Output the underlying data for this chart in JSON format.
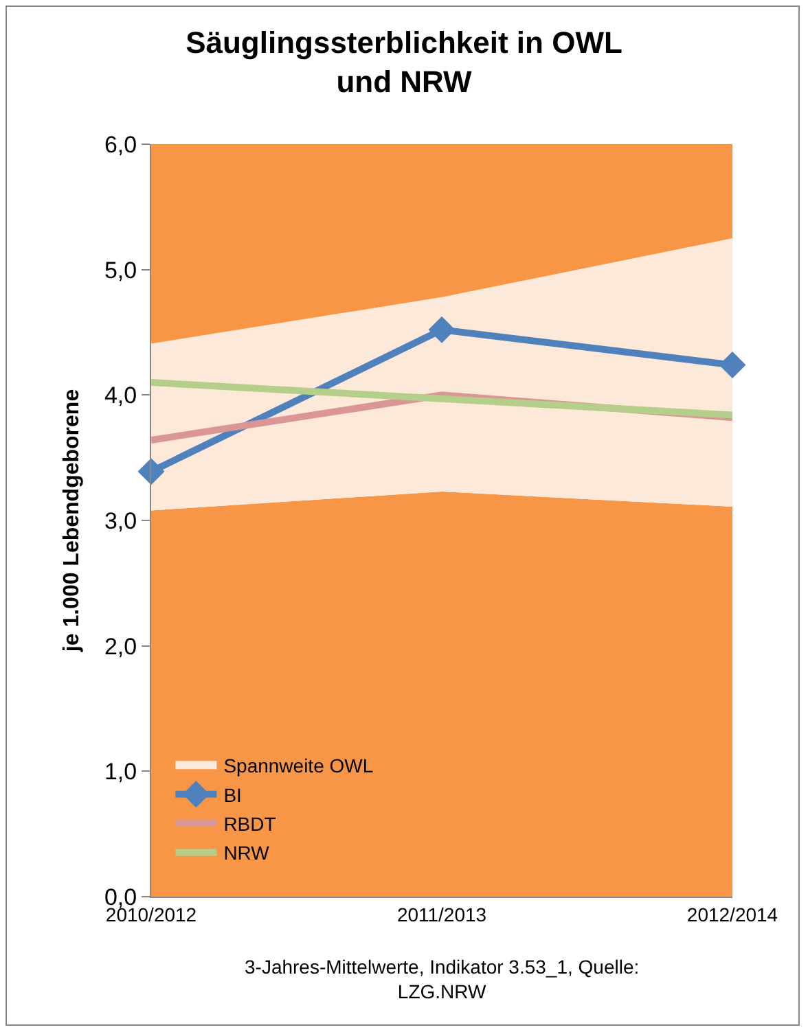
{
  "chart_data": {
    "type": "line",
    "title": "Säuglingssterblichkeit in OWL und NRW",
    "ylabel": "je 1.000 Lebendgeborene",
    "categories": [
      "2010/2012",
      "2011/2013",
      "2012/2014"
    ],
    "stacked": true,
    "series": [
      {
        "type": "area",
        "color": "#f79646",
        "values": [
          3.08,
          3.23,
          3.11
        ]
      },
      {
        "type": "area",
        "name": "Spannweite OWL",
        "color": "#fde9d9",
        "values": [
          1.33,
          1.55,
          2.14
        ]
      },
      {
        "type": "area",
        "color": "#f79646",
        "values": [
          1.59,
          1.22,
          0.75
        ]
      },
      {
        "type": "line",
        "name": "BI",
        "color": "#4f81bd",
        "marker": "diamond",
        "values": [
          3.39,
          4.52,
          4.24
        ]
      },
      {
        "type": "line",
        "name": "RBDT",
        "color": "#d99694",
        "marker": "none",
        "values": [
          3.64,
          4.0,
          3.82
        ]
      },
      {
        "type": "line",
        "name": "NRW",
        "color": "#b3cf8a",
        "marker": "none",
        "values": [
          4.1,
          3.97,
          3.84
        ]
      }
    ],
    "ylim": [
      0,
      6
    ],
    "yticks": [
      {
        "value": 0,
        "label": "0,0"
      },
      {
        "value": 1,
        "label": "1,0"
      },
      {
        "value": 2,
        "label": "2,0"
      },
      {
        "value": 3,
        "label": "3,0"
      },
      {
        "value": 4,
        "label": "4,0"
      },
      {
        "value": 5,
        "label": "5,0"
      },
      {
        "value": 6,
        "label": "6,0"
      }
    ],
    "legend": "bottom left",
    "line_style": "solid",
    "annotations": [
      "3-Jahres-Mittelwerte, Indikator 3.53_1, Quelle: LZG.NRW"
    ]
  }
}
